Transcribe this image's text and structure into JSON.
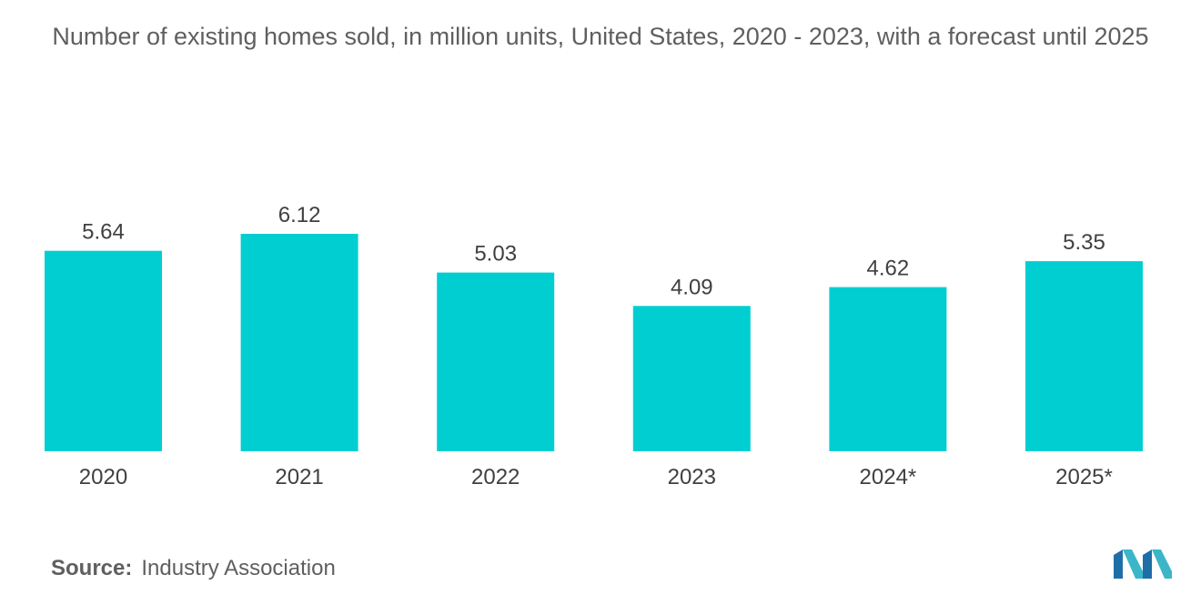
{
  "chart_data": {
    "type": "bar",
    "title": "Number of existing homes sold, in million units, United States, 2020 - 2023, with a forecast until 2025",
    "categories": [
      "2020",
      "2021",
      "2022",
      "2023",
      "2024*",
      "2025*"
    ],
    "values": [
      5.64,
      6.12,
      5.03,
      4.09,
      4.62,
      5.35
    ],
    "data_labels": [
      "5.64",
      "6.12",
      "5.03",
      "4.09",
      "4.62",
      "5.35"
    ],
    "xlabel": "",
    "ylabel": "",
    "ylim": [
      0,
      6.12
    ],
    "grid": false,
    "legend": "none",
    "bar_color": "#00CED1"
  },
  "source": {
    "label": "Source:",
    "value": "Industry Association"
  },
  "logo": {
    "icon": "mordor-logo-icon",
    "colors": [
      "#1E6FA8",
      "#3BB6C9"
    ]
  }
}
